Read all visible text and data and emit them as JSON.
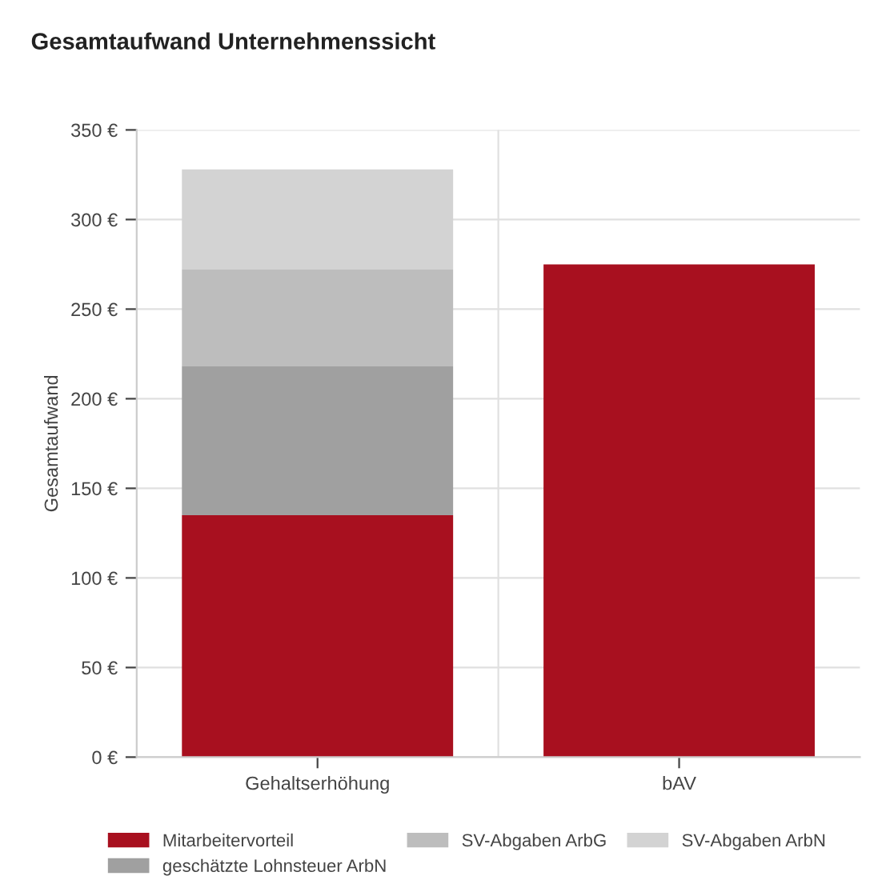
{
  "chart_data": {
    "type": "bar",
    "title": "Gesamtaufwand Unternehmenssicht",
    "ylabel": "Gesamtaufwand",
    "categories": [
      "Gehaltserhöhung",
      "bAV"
    ],
    "stacked": true,
    "series": [
      {
        "name": "Mitarbeitervorteil",
        "color": "#a8101f",
        "values": [
          135,
          275
        ]
      },
      {
        "name": "geschätzte Lohnsteuer ArbN",
        "color": "#a0a0a0",
        "values": [
          83,
          null
        ]
      },
      {
        "name": "SV-Abgaben ArbG",
        "color": "#bdbdbd",
        "values": [
          54,
          null
        ]
      },
      {
        "name": "SV-Abgaben ArbN",
        "color": "#d3d3d3",
        "values": [
          56,
          null
        ]
      }
    ],
    "ylim": [
      0,
      350
    ],
    "yticks": [
      {
        "value": 0,
        "label": "0 €"
      },
      {
        "value": 50,
        "label": "50 €"
      },
      {
        "value": 100,
        "label": "100 €"
      },
      {
        "value": 150,
        "label": "150 €"
      },
      {
        "value": 200,
        "label": "200 €"
      },
      {
        "value": 250,
        "label": "250 €"
      },
      {
        "value": 300,
        "label": "300 €"
      },
      {
        "value": 350,
        "label": "350 €"
      }
    ],
    "grid": true,
    "legend": "bottom"
  }
}
